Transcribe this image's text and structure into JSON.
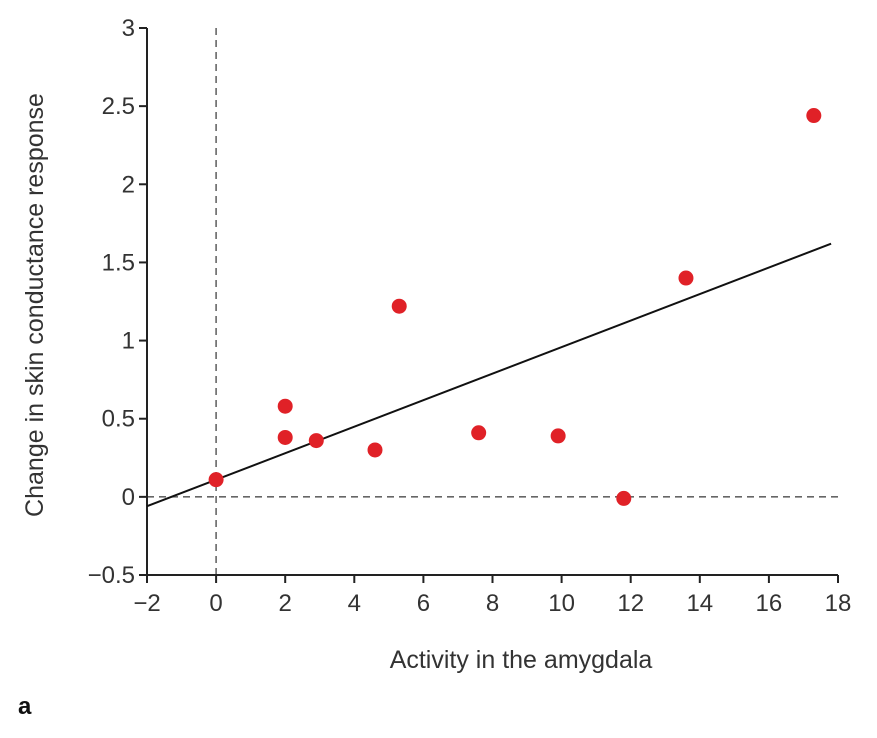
{
  "chart_data": {
    "type": "scatter",
    "title": "",
    "xlabel": "Activity in the amygdala",
    "ylabel": "Change in skin conductance response",
    "panel_label": "a",
    "xlim": [
      -2,
      18
    ],
    "ylim": [
      -0.5,
      3
    ],
    "xticks": [
      "−2",
      "0",
      "2",
      "4",
      "6",
      "8",
      "10",
      "12",
      "14",
      "16",
      "18"
    ],
    "yticks": [
      "−0.5",
      "0",
      "0.5",
      "1",
      "1.5",
      "2",
      "2.5",
      "3"
    ],
    "grid": false,
    "reference_lines": {
      "x": 0,
      "y": 0,
      "style": "dashed"
    },
    "points": [
      {
        "x": 0.0,
        "y": 0.11
      },
      {
        "x": 2.0,
        "y": 0.58
      },
      {
        "x": 2.0,
        "y": 0.38
      },
      {
        "x": 2.9,
        "y": 0.36
      },
      {
        "x": 4.6,
        "y": 0.3
      },
      {
        "x": 5.3,
        "y": 1.22
      },
      {
        "x": 7.6,
        "y": 0.41
      },
      {
        "x": 9.9,
        "y": 0.39
      },
      {
        "x": 11.8,
        "y": -0.01
      },
      {
        "x": 13.6,
        "y": 1.4
      },
      {
        "x": 17.3,
        "y": 2.44
      }
    ],
    "trendline": {
      "x": [
        -2,
        17.8
      ],
      "y": [
        -0.06,
        1.62
      ]
    },
    "colors": {
      "points": "#e02127",
      "trendline": "#111111",
      "axes": "#222222",
      "reference": "#666666"
    }
  }
}
